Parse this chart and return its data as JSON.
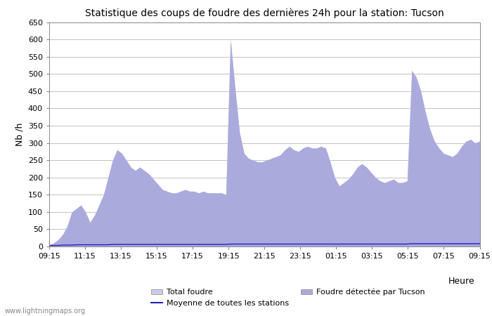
{
  "title": "Statistique des coups de foudre des dernières 24h pour la station: Tucson",
  "ylabel": "Nb /h",
  "xlabel": "Heure",
  "ylim": [
    0,
    650
  ],
  "yticks": [
    0,
    50,
    100,
    150,
    200,
    250,
    300,
    350,
    400,
    450,
    500,
    550,
    600,
    650
  ],
  "xtick_labels": [
    "09:15",
    "11:15",
    "13:15",
    "15:15",
    "17:15",
    "19:15",
    "21:15",
    "23:15",
    "01:15",
    "03:15",
    "05:15",
    "07:15",
    "09:15"
  ],
  "watermark": "www.lightningmaps.org",
  "legend_total": "Total foudre",
  "legend_station": "Foudre détectée par Tucson",
  "legend_mean": "Moyenne de toutes les stations",
  "color_total": "#cccce8",
  "color_station": "#aaaadd",
  "color_mean": "#2222bb",
  "background_color": "#ffffff",
  "total_values": [
    5,
    10,
    20,
    35,
    60,
    100,
    110,
    120,
    100,
    70,
    90,
    120,
    150,
    200,
    250,
    280,
    270,
    250,
    230,
    220,
    230,
    220,
    210,
    195,
    180,
    165,
    160,
    155,
    155,
    160,
    165,
    160,
    160,
    155,
    160,
    155,
    155,
    155,
    155,
    150,
    600,
    460,
    330,
    270,
    255,
    250,
    245,
    245,
    250,
    255,
    260,
    265,
    280,
    290,
    280,
    275,
    285,
    290,
    285,
    285,
    290,
    285,
    245,
    200,
    175,
    185,
    195,
    210,
    230,
    240,
    230,
    215,
    200,
    190,
    185,
    190,
    195,
    185,
    185,
    190,
    510,
    490,
    450,
    390,
    340,
    305,
    285,
    270,
    265,
    260,
    270,
    290,
    305,
    310,
    300,
    305
  ],
  "station_values": [
    5,
    10,
    20,
    35,
    60,
    100,
    110,
    120,
    100,
    70,
    90,
    120,
    150,
    200,
    250,
    280,
    270,
    250,
    230,
    220,
    230,
    220,
    210,
    195,
    180,
    165,
    160,
    155,
    155,
    160,
    165,
    160,
    160,
    155,
    160,
    155,
    155,
    155,
    155,
    150,
    600,
    460,
    330,
    270,
    255,
    250,
    245,
    245,
    250,
    255,
    260,
    265,
    280,
    290,
    280,
    275,
    285,
    290,
    285,
    285,
    290,
    285,
    245,
    200,
    175,
    185,
    195,
    210,
    230,
    240,
    230,
    215,
    200,
    190,
    185,
    190,
    195,
    185,
    185,
    190,
    510,
    490,
    450,
    390,
    340,
    305,
    285,
    270,
    265,
    260,
    270,
    290,
    305,
    310,
    300,
    305
  ],
  "mean_values": [
    3,
    3,
    3,
    4,
    4,
    4,
    5,
    5,
    5,
    5,
    5,
    5,
    5,
    5,
    6,
    6,
    6,
    6,
    6,
    6,
    6,
    6,
    6,
    6,
    6,
    6,
    6,
    6,
    6,
    6,
    6,
    6,
    6,
    6,
    6,
    6,
    6,
    6,
    6,
    6,
    7,
    7,
    7,
    7,
    7,
    7,
    7,
    7,
    7,
    7,
    7,
    7,
    7,
    7,
    7,
    7,
    7,
    7,
    7,
    7,
    7,
    7,
    7,
    7,
    7,
    7,
    7,
    7,
    7,
    7,
    7,
    7,
    7,
    7,
    7,
    7,
    7,
    7,
    7,
    7,
    8,
    8,
    8,
    8,
    8,
    8,
    8,
    8,
    8,
    8,
    8,
    8,
    8,
    8,
    8,
    8
  ]
}
